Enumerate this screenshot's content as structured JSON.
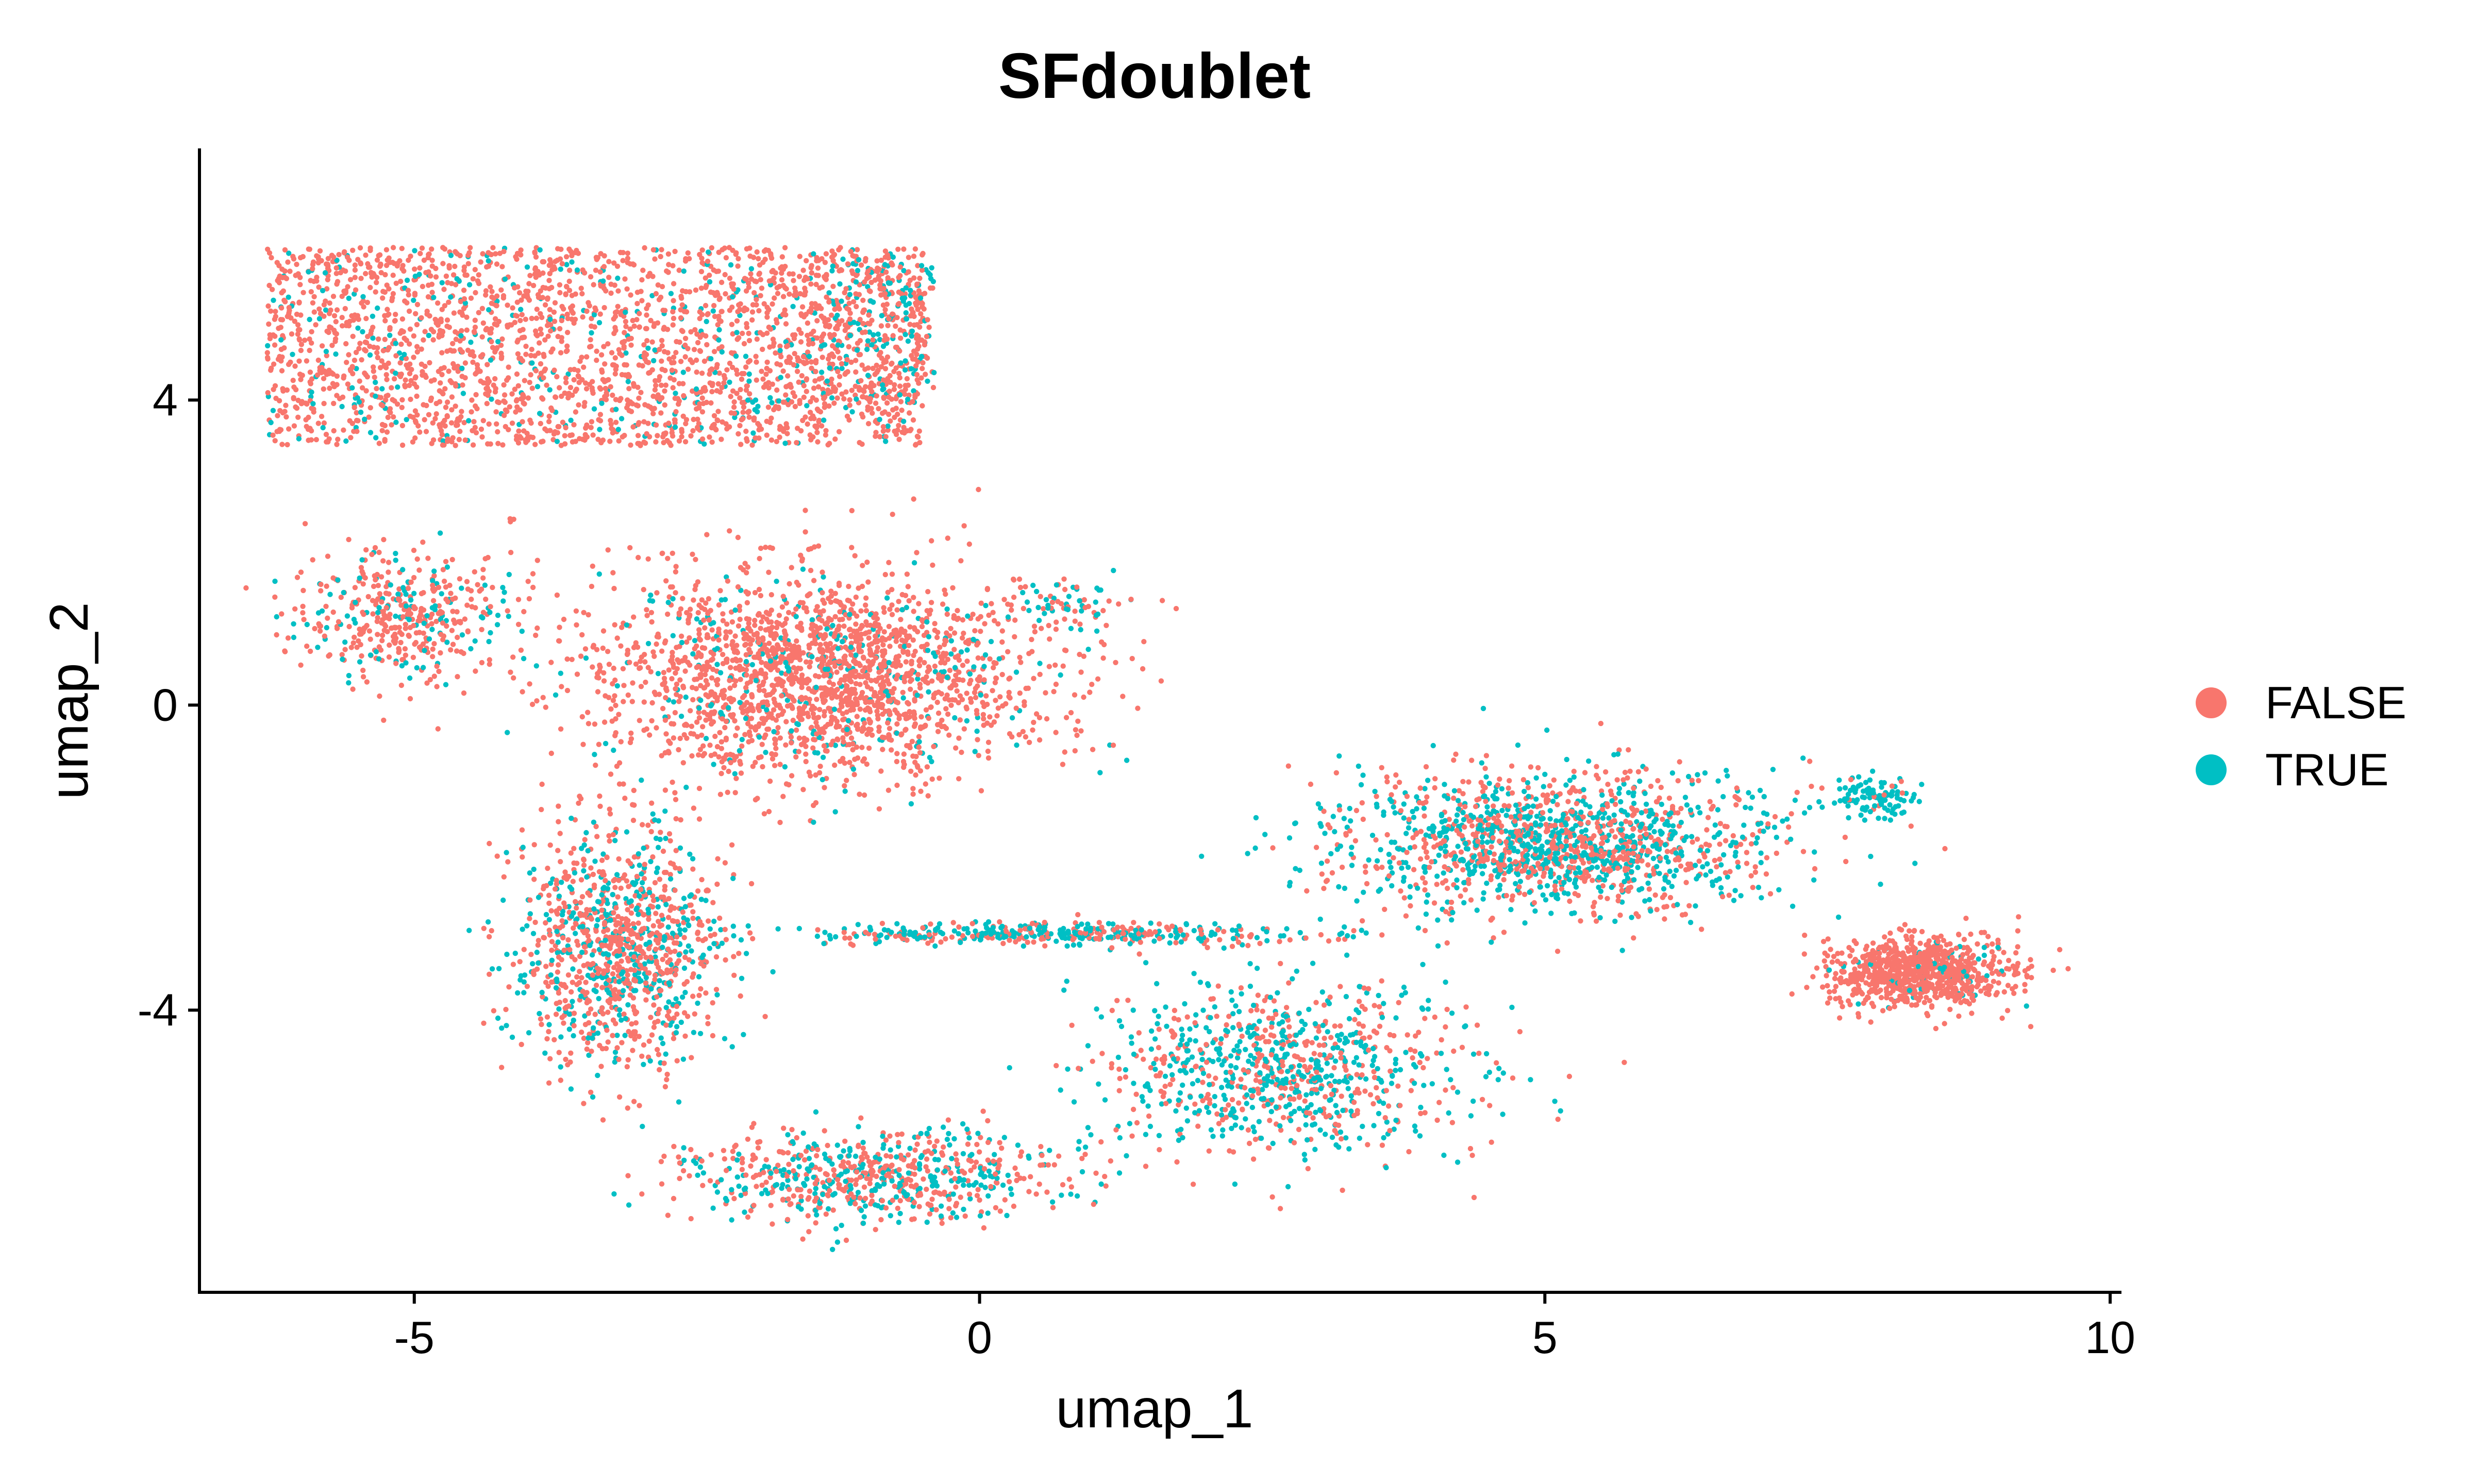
{
  "colors": {
    "FALSE": "#F8766D",
    "TRUE": "#00BFC4",
    "axis": "#000000",
    "background": "#FFFFFF"
  },
  "chart_data": {
    "type": "scatter",
    "title": "SFdoublet",
    "xlabel": "umap_1",
    "ylabel": "umap_2",
    "xlim": [
      -6.9,
      10.1
    ],
    "ylim": [
      -7.7,
      7.3
    ],
    "xticks": [
      -5,
      0,
      5,
      10
    ],
    "yticks": [
      -4,
      0,
      4
    ],
    "grid": false,
    "legend": {
      "placement": "right",
      "entries": [
        "FALSE",
        "TRUE"
      ]
    },
    "clusters": [
      {
        "name": "upper-left block",
        "center": [
          -3.4,
          4.7
        ],
        "extent": [
          2.9,
          1.3
        ],
        "shape": "box",
        "points": 2600,
        "true_fraction": 0.12
      },
      {
        "name": "upper-left block east edge",
        "center": [
          -0.9,
          4.9
        ],
        "extent": [
          0.5,
          0.9
        ],
        "shape": "box",
        "points": 250,
        "true_fraction": 0.45
      },
      {
        "name": "left lower lobe",
        "center": [
          -5.1,
          1.2
        ],
        "extent": [
          1.0,
          0.9
        ],
        "shape": "blob",
        "points": 450,
        "true_fraction": 0.25
      },
      {
        "name": "central mass",
        "center": [
          -1.4,
          0.4
        ],
        "extent": [
          2.0,
          1.3
        ],
        "shape": "blob",
        "points": 2100,
        "true_fraction": 0.12
      },
      {
        "name": "central tail",
        "center": [
          0.8,
          1.3
        ],
        "extent": [
          0.6,
          0.3
        ],
        "shape": "blob",
        "points": 60,
        "true_fraction": 0.7
      },
      {
        "name": "descending left arm",
        "center": [
          -3.2,
          -3.2
        ],
        "extent": [
          0.9,
          1.6
        ],
        "shape": "blob",
        "points": 1100,
        "true_fraction": 0.35
      },
      {
        "name": "lower arc",
        "center": [
          -0.9,
          -6.2
        ],
        "extent": [
          1.7,
          0.6
        ],
        "shape": "blob",
        "points": 700,
        "true_fraction": 0.4
      },
      {
        "name": "horizontal bridge",
        "center": [
          0.6,
          -3.0
        ],
        "extent": [
          2.4,
          0.15
        ],
        "shape": "blob",
        "points": 420,
        "true_fraction": 0.6
      },
      {
        "name": "lower middle cloud",
        "center": [
          2.7,
          -4.8
        ],
        "extent": [
          1.6,
          1.1
        ],
        "shape": "blob",
        "points": 900,
        "true_fraction": 0.55
      },
      {
        "name": "right band",
        "center": [
          5.1,
          -1.8
        ],
        "extent": [
          1.9,
          0.9
        ],
        "shape": "blob",
        "points": 1500,
        "true_fraction": 0.5
      },
      {
        "name": "far right cluster",
        "center": [
          8.3,
          -3.5
        ],
        "extent": [
          0.8,
          0.45
        ],
        "shape": "blob",
        "points": 900,
        "true_fraction": 0.05
      },
      {
        "name": "small teal cluster",
        "center": [
          7.9,
          -1.2
        ],
        "extent": [
          0.35,
          0.25
        ],
        "shape": "blob",
        "points": 110,
        "true_fraction": 0.95
      }
    ]
  }
}
